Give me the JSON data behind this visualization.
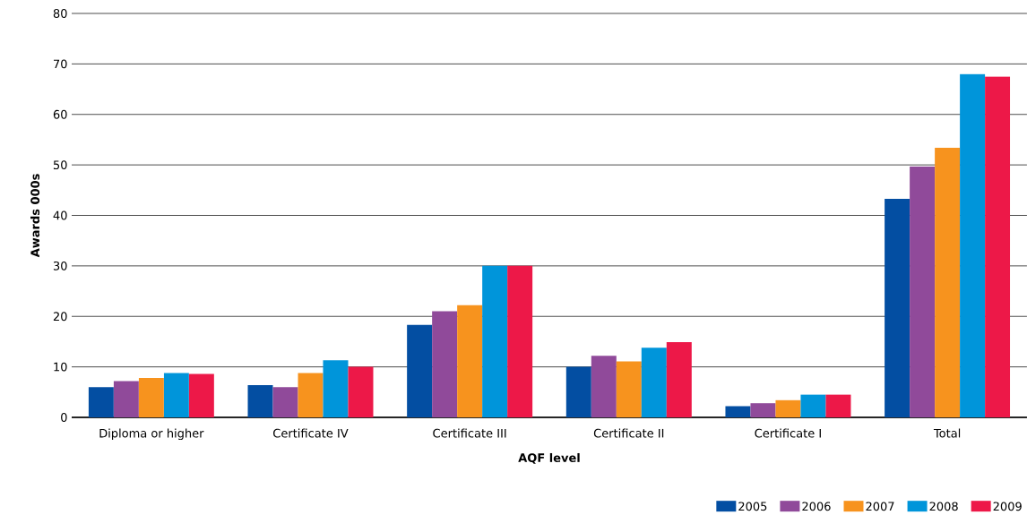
{
  "chart_data": {
    "type": "bar",
    "xlabel": "AQF level",
    "ylabel": "Awards 000s",
    "categories": [
      "Diploma or higher",
      "Certificate IV",
      "Certificate III",
      "Certificate II",
      "Certificate I",
      "Total"
    ],
    "series": [
      {
        "name": "2005",
        "color": "#034ea2",
        "values": [
          6.0,
          6.4,
          18.3,
          10.0,
          2.2,
          43.3
        ]
      },
      {
        "name": "2006",
        "color": "#904a9a",
        "values": [
          7.2,
          6.0,
          21.0,
          12.2,
          2.8,
          49.7
        ]
      },
      {
        "name": "2007",
        "color": "#f7931e",
        "values": [
          7.8,
          8.8,
          22.2,
          11.1,
          3.4,
          53.4
        ]
      },
      {
        "name": "2008",
        "color": "#0095da",
        "values": [
          8.8,
          11.3,
          30.0,
          13.8,
          4.5,
          68.0
        ]
      },
      {
        "name": "2009",
        "color": "#ed1848",
        "values": [
          8.6,
          10.0,
          30.0,
          14.9,
          4.5,
          67.5
        ]
      }
    ],
    "ylim": [
      0,
      80
    ],
    "yticks": [
      0,
      10,
      20,
      30,
      40,
      50,
      60,
      70,
      80
    ],
    "grid": "y",
    "legend": "bottom right"
  }
}
